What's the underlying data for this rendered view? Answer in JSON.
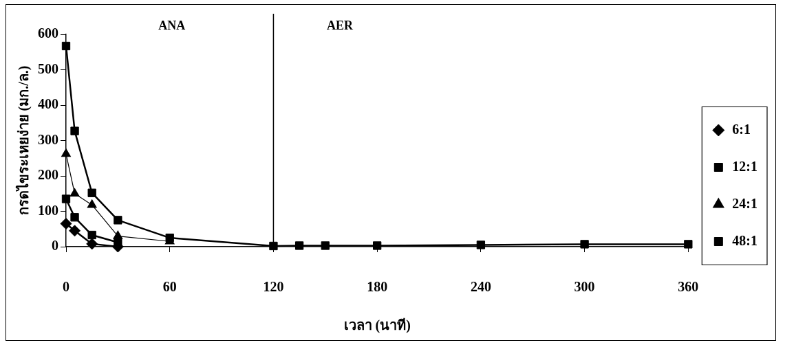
{
  "chart_data": {
    "type": "line",
    "xlabel": "เวลา (นาที)",
    "ylabel": "กรดไขระเหยง่าย (มก./ล.)",
    "x": [
      0,
      5,
      15,
      30,
      60,
      120,
      135,
      150,
      180,
      240,
      300,
      360
    ],
    "xlim": [
      0,
      360
    ],
    "xticks": [
      0,
      60,
      120,
      180,
      240,
      300,
      360
    ],
    "ylim": [
      0,
      600
    ],
    "yticks": [
      0,
      100,
      200,
      300,
      400,
      500,
      600
    ],
    "grid": false,
    "legend": "right",
    "line_style": "solid",
    "series": [
      {
        "name": "6:1",
        "color": "#000000",
        "marker": "diamond",
        "values": [
          65,
          45,
          8,
          0,
          null,
          null,
          null,
          null,
          null,
          null,
          null,
          null
        ]
      },
      {
        "name": "12:1",
        "color": "#000000",
        "marker": "square",
        "values": [
          135,
          83,
          33,
          12,
          null,
          null,
          null,
          null,
          null,
          null,
          null,
          null
        ]
      },
      {
        "name": "24:1",
        "color": "#000000",
        "marker": "triangle",
        "values": [
          262,
          150,
          118,
          30,
          15,
          null,
          null,
          null,
          null,
          null,
          null,
          null
        ]
      },
      {
        "name": "48:1",
        "color": "#000000",
        "marker": "square",
        "values": [
          567,
          327,
          152,
          75,
          25,
          2,
          3,
          3,
          3,
          5,
          7,
          7
        ]
      }
    ],
    "ref_lines": [
      {
        "axis": "x",
        "value": 120,
        "color": "#000000"
      }
    ],
    "annotations": [
      "ANA",
      "AER"
    ]
  }
}
